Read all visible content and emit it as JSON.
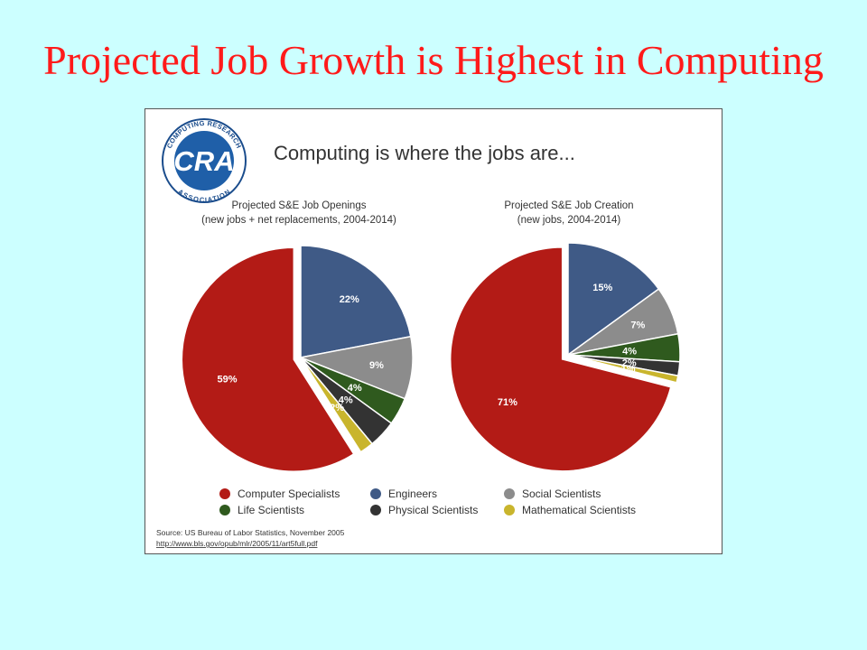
{
  "slide": {
    "title": "Projected Job Growth is Highest in Computing"
  },
  "panel": {
    "headline": "Computing is where the jobs are...",
    "logo": {
      "center_text": "CRA",
      "ring_top": "COMPUTING RESEARCH",
      "ring_bottom": "ASSOCIATION",
      "colors": {
        "ring": "#1a4c8c",
        "fill": "#1f5fa8"
      }
    },
    "source_line1": "Source: US Bureau of Labor Statistics, November 2005",
    "source_line2": "http://www.bls.gov/opub/mlr/2005/11/art5full.pdf"
  },
  "legend": {
    "items": [
      {
        "label": "Computer Specialists",
        "color": "#b31b16"
      },
      {
        "label": "Engineers",
        "color": "#3f5a86"
      },
      {
        "label": "Social Scientists",
        "color": "#8c8c8c"
      },
      {
        "label": "Life Scientists",
        "color": "#2f5a1e"
      },
      {
        "label": "Physical Scientists",
        "color": "#333333"
      },
      {
        "label": "Mathematical Scientists",
        "color": "#c9b52d"
      }
    ]
  },
  "chart_data": [
    {
      "type": "pie",
      "title_line1": "Projected S&E Job Openings",
      "title_line2": "(new jobs + net replacements, 2004-2014)",
      "slices": [
        {
          "category": "Computer Specialists",
          "value": 59,
          "label": "59%"
        },
        {
          "category": "Engineers",
          "value": 22,
          "label": "22%"
        },
        {
          "category": "Social Scientists",
          "value": 9,
          "label": "9%"
        },
        {
          "category": "Life Scientists",
          "value": 4,
          "label": "4%"
        },
        {
          "category": "Physical Scientists",
          "value": 4,
          "label": "4%"
        },
        {
          "category": "Mathematical Scientists",
          "value": 2,
          "label": "2%"
        }
      ]
    },
    {
      "type": "pie",
      "title_line1": "Projected S&E Job Creation",
      "title_line2": "(new jobs, 2004-2014)",
      "slices": [
        {
          "category": "Computer Specialists",
          "value": 71,
          "label": "71%"
        },
        {
          "category": "Engineers",
          "value": 15,
          "label": "15%"
        },
        {
          "category": "Social Scientists",
          "value": 7,
          "label": "7%"
        },
        {
          "category": "Life Scientists",
          "value": 4,
          "label": "4%"
        },
        {
          "category": "Physical Scientists",
          "value": 2,
          "label": "2%"
        },
        {
          "category": "Mathematical Scientists",
          "value": 1,
          "label": "1%"
        }
      ]
    }
  ]
}
